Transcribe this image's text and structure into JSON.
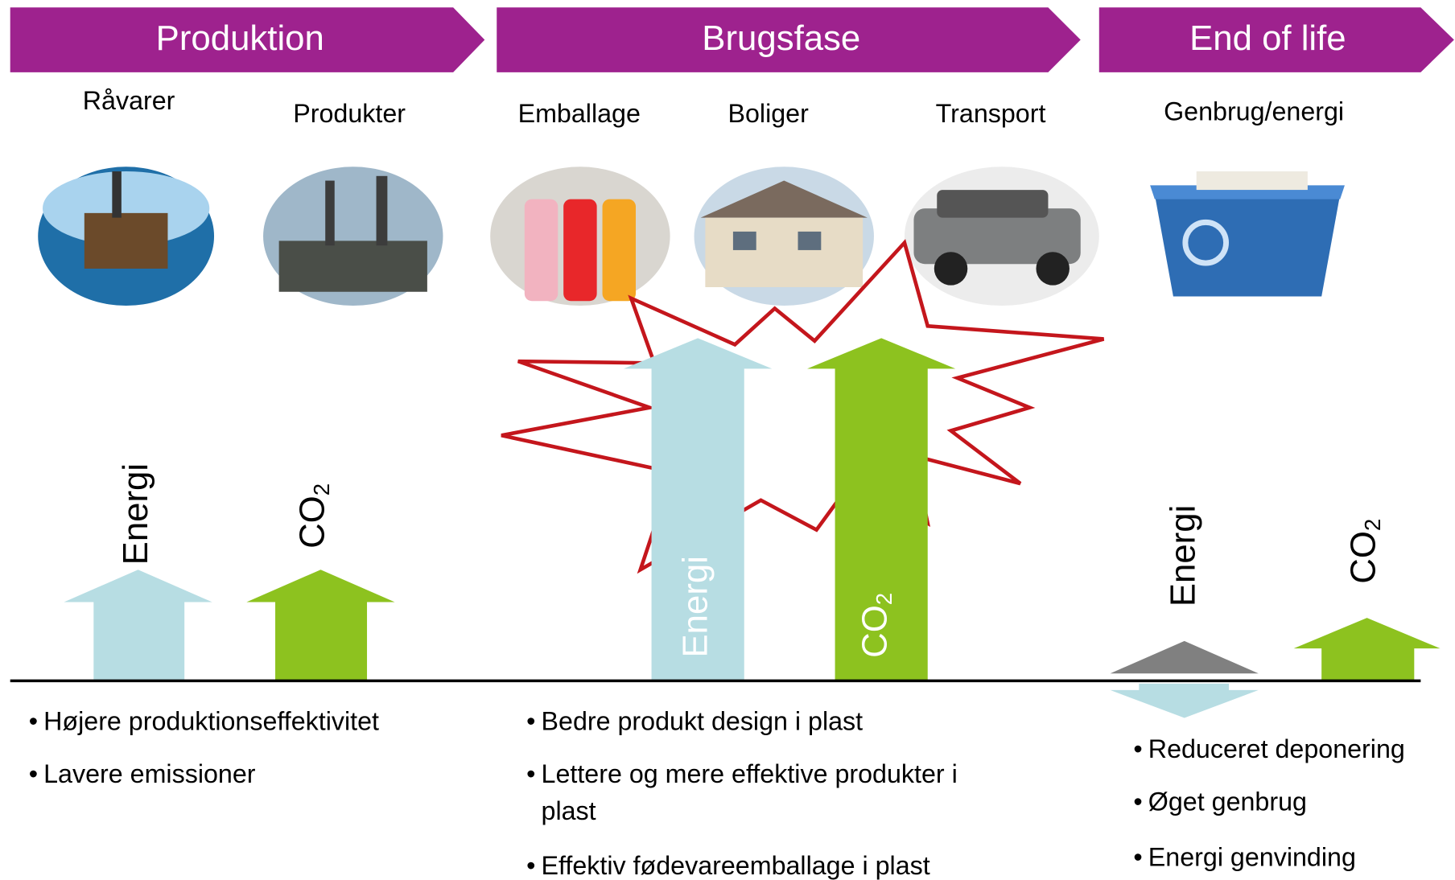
{
  "phases": [
    {
      "title": "Produktion",
      "items": [
        "Råvarer",
        "Produkter"
      ],
      "bullets": [
        "Højere produktionseffektivitet",
        "Lavere emissioner"
      ]
    },
    {
      "title": "Brugsfase",
      "items": [
        "Emballage",
        "Boliger",
        "Transport"
      ],
      "bullets": [
        "Bedre produkt design i plast",
        "Lettere og mere effektive produkter i",
        "plast",
        "Effektiv fødevareemballage i plast"
      ]
    },
    {
      "title": "End of life",
      "items": [
        "Genbrug/energi"
      ],
      "bullets": [
        "Reduceret deponering",
        "Øget genbrug",
        "Energi genvinding"
      ]
    }
  ],
  "arrow_labels": {
    "energy": "Energi",
    "co2": {
      "text": "CO",
      "sub": "2"
    }
  }
}
